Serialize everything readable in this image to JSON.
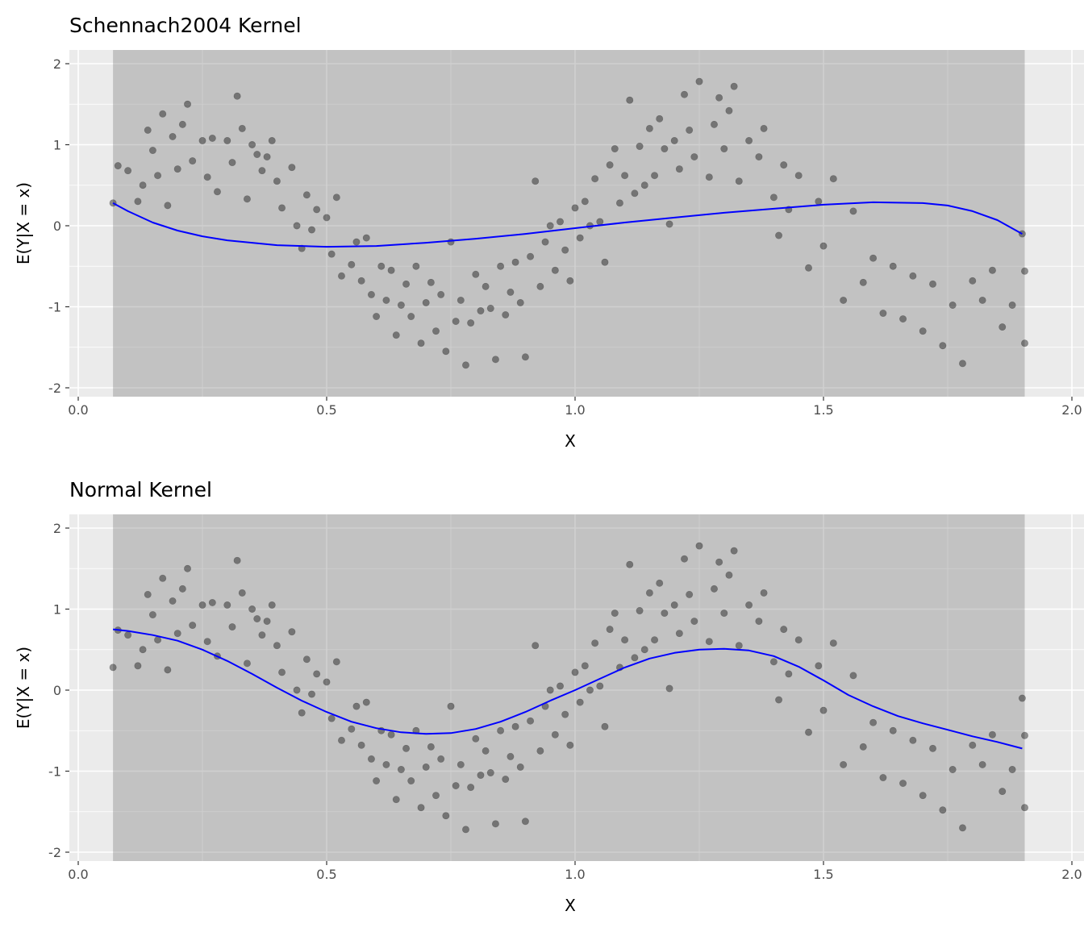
{
  "chart_data": {
    "type": "scatter",
    "xlabel": "X",
    "ylabel": "E(Y|X = x)",
    "xlim": [
      -0.02,
      2.0
    ],
    "ylim": [
      -2.17,
      2.17
    ],
    "xticks": [
      0.0,
      0.5,
      1.0,
      1.5,
      2.0
    ],
    "xtick_labels": [
      "0.0",
      "0.5",
      "1.0",
      "1.5",
      "2.0"
    ],
    "yticks": [
      2,
      1,
      0,
      -1,
      -2
    ],
    "ytick_labels": [
      "2",
      "1",
      "0",
      "-1",
      "-2"
    ],
    "grid": true,
    "shaded_x_range": [
      0.07,
      1.905
    ],
    "point_color": "#000000",
    "point_alpha": 0.4,
    "line_color": "#0000ff",
    "points": {
      "x": [
        0.07,
        0.08,
        0.1,
        0.12,
        0.13,
        0.14,
        0.15,
        0.16,
        0.17,
        0.18,
        0.19,
        0.2,
        0.21,
        0.22,
        0.23,
        0.25,
        0.26,
        0.27,
        0.28,
        0.3,
        0.31,
        0.32,
        0.33,
        0.34,
        0.35,
        0.36,
        0.37,
        0.38,
        0.39,
        0.4,
        0.41,
        0.43,
        0.44,
        0.45,
        0.46,
        0.47,
        0.48,
        0.5,
        0.51,
        0.52,
        0.53,
        0.55,
        0.56,
        0.57,
        0.58,
        0.59,
        0.6,
        0.61,
        0.62,
        0.63,
        0.64,
        0.65,
        0.66,
        0.67,
        0.68,
        0.69,
        0.7,
        0.71,
        0.72,
        0.73,
        0.74,
        0.75,
        0.76,
        0.77,
        0.78,
        0.79,
        0.8,
        0.81,
        0.82,
        0.83,
        0.84,
        0.85,
        0.86,
        0.87,
        0.88,
        0.89,
        0.9,
        0.91,
        0.92,
        0.93,
        0.94,
        0.95,
        0.96,
        0.97,
        0.98,
        0.99,
        1.0,
        1.01,
        1.02,
        1.03,
        1.04,
        1.05,
        1.06,
        1.07,
        1.08,
        1.09,
        1.1,
        1.11,
        1.12,
        1.13,
        1.14,
        1.15,
        1.16,
        1.17,
        1.18,
        1.19,
        1.2,
        1.21,
        1.22,
        1.23,
        1.24,
        1.25,
        1.27,
        1.28,
        1.29,
        1.3,
        1.31,
        1.32,
        1.33,
        1.35,
        1.37,
        1.38,
        1.4,
        1.41,
        1.42,
        1.43,
        1.45,
        1.47,
        1.49,
        1.5,
        1.52,
        1.54,
        1.56,
        1.58,
        1.6,
        1.62,
        1.64,
        1.66,
        1.68,
        1.7,
        1.72,
        1.74,
        1.76,
        1.78,
        1.8,
        1.82,
        1.84,
        1.86,
        1.88,
        1.9,
        1.905,
        1.905
      ],
      "y": [
        0.28,
        0.74,
        0.68,
        0.3,
        0.5,
        1.18,
        0.93,
        0.62,
        1.38,
        0.25,
        1.1,
        0.7,
        1.25,
        1.5,
        0.8,
        1.05,
        0.6,
        1.08,
        0.42,
        1.05,
        0.78,
        1.6,
        1.2,
        0.33,
        1.0,
        0.88,
        0.68,
        0.85,
        1.05,
        0.55,
        0.22,
        0.72,
        0.0,
        -0.28,
        0.38,
        -0.05,
        0.2,
        0.1,
        -0.35,
        0.35,
        -0.62,
        -0.48,
        -0.2,
        -0.68,
        -0.15,
        -0.85,
        -1.12,
        -0.5,
        -0.92,
        -0.55,
        -1.35,
        -0.98,
        -0.72,
        -1.12,
        -0.5,
        -1.45,
        -0.95,
        -0.7,
        -1.3,
        -0.85,
        -1.55,
        -0.2,
        -1.18,
        -0.92,
        -1.72,
        -1.2,
        -0.6,
        -1.05,
        -0.75,
        -1.02,
        -1.65,
        -0.5,
        -1.1,
        -0.82,
        -0.45,
        -0.95,
        -1.62,
        -0.38,
        0.55,
        -0.75,
        -0.2,
        0.0,
        -0.55,
        0.05,
        -0.3,
        -0.68,
        0.22,
        -0.15,
        0.3,
        0.0,
        0.58,
        0.05,
        -0.45,
        0.75,
        0.95,
        0.28,
        0.62,
        1.55,
        0.4,
        0.98,
        0.5,
        1.2,
        0.62,
        1.32,
        0.95,
        0.02,
        1.05,
        0.7,
        1.62,
        1.18,
        0.85,
        1.78,
        0.6,
        1.25,
        1.58,
        0.95,
        1.42,
        1.72,
        0.55,
        1.05,
        0.85,
        1.2,
        0.35,
        -0.12,
        0.75,
        0.2,
        0.62,
        -0.52,
        0.3,
        -0.25,
        0.58,
        -0.92,
        0.18,
        -0.7,
        -0.4,
        -1.08,
        -0.5,
        -1.15,
        -0.62,
        -1.3,
        -0.72,
        -1.48,
        -0.98,
        -1.7,
        -0.68,
        -0.92,
        -0.55,
        -1.25,
        -0.98,
        -0.1,
        -1.45,
        -0.56
      ]
    },
    "panels": [
      {
        "title": "Schennach2004 Kernel",
        "curve": {
          "x": [
            0.07,
            0.1,
            0.15,
            0.2,
            0.25,
            0.3,
            0.4,
            0.5,
            0.6,
            0.7,
            0.8,
            0.9,
            1.0,
            1.1,
            1.2,
            1.3,
            1.4,
            1.5,
            1.6,
            1.7,
            1.75,
            1.8,
            1.85,
            1.9
          ],
          "y": [
            0.28,
            0.18,
            0.04,
            -0.06,
            -0.13,
            -0.18,
            -0.24,
            -0.26,
            -0.25,
            -0.21,
            -0.16,
            -0.1,
            -0.03,
            0.04,
            0.1,
            0.16,
            0.21,
            0.26,
            0.29,
            0.28,
            0.25,
            0.18,
            0.07,
            -0.1
          ]
        }
      },
      {
        "title": "Normal Kernel",
        "curve": {
          "x": [
            0.07,
            0.1,
            0.15,
            0.2,
            0.25,
            0.3,
            0.35,
            0.4,
            0.45,
            0.5,
            0.55,
            0.6,
            0.65,
            0.7,
            0.75,
            0.8,
            0.85,
            0.9,
            0.95,
            1.0,
            1.05,
            1.1,
            1.15,
            1.2,
            1.25,
            1.3,
            1.35,
            1.4,
            1.45,
            1.5,
            1.55,
            1.6,
            1.65,
            1.7,
            1.75,
            1.8,
            1.85,
            1.9
          ],
          "y": [
            0.75,
            0.73,
            0.68,
            0.61,
            0.5,
            0.36,
            0.2,
            0.03,
            -0.13,
            -0.27,
            -0.39,
            -0.47,
            -0.52,
            -0.54,
            -0.53,
            -0.48,
            -0.39,
            -0.27,
            -0.13,
            0.0,
            0.14,
            0.28,
            0.39,
            0.46,
            0.5,
            0.51,
            0.49,
            0.42,
            0.29,
            0.12,
            -0.06,
            -0.2,
            -0.32,
            -0.41,
            -0.49,
            -0.57,
            -0.64,
            -0.72
          ]
        }
      }
    ]
  }
}
